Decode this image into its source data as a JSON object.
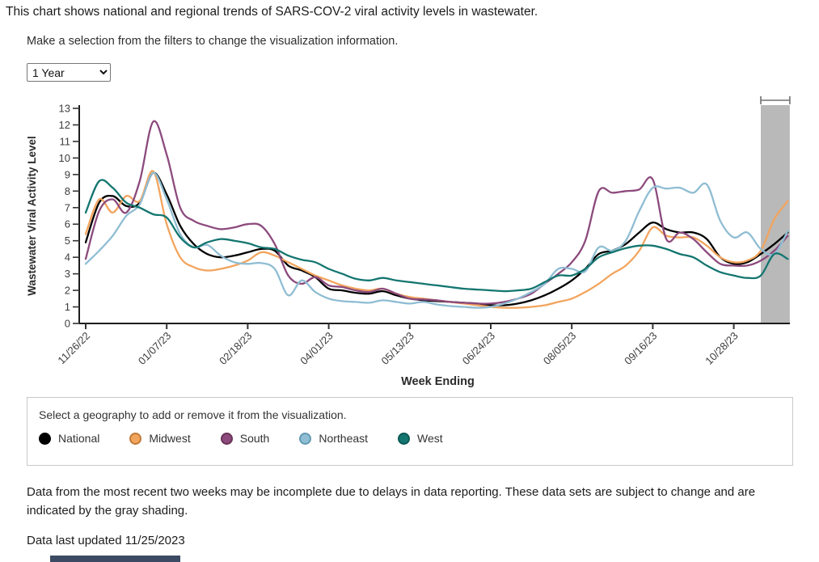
{
  "page": {
    "title": "This chart shows national and regional trends of SARS-COV-2 viral activity levels in wastewater.",
    "subtitle": "Make a selection from the filters to change the visualization information.",
    "time_filter": {
      "selected": "1 Year"
    },
    "footnote": "Data from the most recent two weeks may be incomplete due to delays in data reporting. These data sets are subject to change and are indicated by the gray shading.",
    "last_updated": "Data last updated 11/25/2023"
  },
  "legend": {
    "prompt": "Select a geography to add or remove it from the visualization.",
    "items": [
      {
        "label": "National",
        "color": "#000000",
        "border": "#000000"
      },
      {
        "label": "Midwest",
        "color": "#F2A45E",
        "border": "#C17A36"
      },
      {
        "label": "South",
        "color": "#8C4A7D",
        "border": "#693358"
      },
      {
        "label": "Northeast",
        "color": "#8FBDD3",
        "border": "#639AB4"
      },
      {
        "label": "West",
        "color": "#147670",
        "border": "#0C5A54"
      }
    ]
  },
  "chart_data": {
    "type": "line",
    "title": "",
    "xlabel": "Week Ending",
    "ylabel": "Wastewater Viral Activity Level",
    "ylim": [
      0,
      13
    ],
    "y_ticks": [
      0,
      1,
      2,
      3,
      4,
      5,
      6,
      7,
      8,
      9,
      10,
      11,
      12,
      13
    ],
    "grid": false,
    "legend_position": "bottom",
    "x": [
      "11/26/22",
      "12/03/22",
      "12/10/22",
      "12/17/22",
      "12/24/22",
      "12/31/22",
      "01/07/23",
      "01/14/23",
      "01/21/23",
      "01/28/23",
      "02/04/23",
      "02/11/23",
      "02/18/23",
      "02/25/23",
      "03/04/23",
      "03/11/23",
      "03/18/23",
      "03/25/23",
      "04/01/23",
      "04/08/23",
      "04/15/23",
      "04/22/23",
      "04/29/23",
      "05/06/23",
      "05/13/23",
      "05/20/23",
      "05/27/23",
      "06/03/23",
      "06/10/23",
      "06/17/23",
      "06/24/23",
      "07/01/23",
      "07/08/23",
      "07/15/23",
      "07/22/23",
      "07/29/23",
      "08/05/23",
      "08/12/23",
      "08/19/23",
      "08/26/23",
      "09/02/23",
      "09/09/23",
      "09/16/23",
      "09/23/23",
      "09/30/23",
      "10/07/23",
      "10/14/23",
      "10/21/23",
      "10/28/23",
      "11/04/23",
      "11/11/23",
      "11/18/23",
      "11/25/23"
    ],
    "x_tick_indices": [
      0,
      6,
      12,
      18,
      24,
      30,
      36,
      42,
      48
    ],
    "x_tick_labels": [
      "11/26/22",
      "01/07/23",
      "02/18/23",
      "04/01/23",
      "05/13/23",
      "06/24/23",
      "08/05/23",
      "09/16/23",
      "10/28/23"
    ],
    "series": [
      {
        "name": "National",
        "color": "#000000",
        "values": [
          4.9,
          7.3,
          7.7,
          7.1,
          7.3,
          9.1,
          7.8,
          5.9,
          4.8,
          4.2,
          4.0,
          4.1,
          4.3,
          4.5,
          4.4,
          3.5,
          3.2,
          2.8,
          2.1,
          2.0,
          1.85,
          1.8,
          1.95,
          1.7,
          1.5,
          1.4,
          1.35,
          1.3,
          1.25,
          1.2,
          1.1,
          1.1,
          1.2,
          1.4,
          1.7,
          2.1,
          2.6,
          3.3,
          4.2,
          4.4,
          4.8,
          5.5,
          6.1,
          5.7,
          5.5,
          5.5,
          5.1,
          4.0,
          3.6,
          3.7,
          4.2,
          4.8,
          5.5
        ]
      },
      {
        "name": "Midwest",
        "color": "#F2A45E",
        "values": [
          5.4,
          7.5,
          6.7,
          7.7,
          7.4,
          9.2,
          6.0,
          4.0,
          3.4,
          3.2,
          3.3,
          3.5,
          3.8,
          4.3,
          4.1,
          3.7,
          3.3,
          2.9,
          2.6,
          2.3,
          2.1,
          2.0,
          2.1,
          1.8,
          1.6,
          1.5,
          1.4,
          1.3,
          1.2,
          1.1,
          1.0,
          0.95,
          0.95,
          1.0,
          1.1,
          1.3,
          1.5,
          1.9,
          2.4,
          3.0,
          3.5,
          4.4,
          5.8,
          5.3,
          5.2,
          5.2,
          4.7,
          4.0,
          3.7,
          3.8,
          4.4,
          6.3,
          7.4
        ]
      },
      {
        "name": "South",
        "color": "#8C4A7D",
        "values": [
          3.9,
          6.8,
          7.5,
          6.7,
          8.6,
          12.2,
          10.2,
          7.0,
          6.2,
          5.9,
          5.7,
          5.8,
          6.0,
          5.9,
          4.8,
          2.9,
          2.4,
          2.8,
          2.3,
          2.2,
          2.0,
          1.9,
          2.1,
          1.8,
          1.5,
          1.45,
          1.4,
          1.3,
          1.25,
          1.2,
          1.2,
          1.3,
          1.5,
          1.8,
          2.4,
          3.0,
          3.7,
          5.0,
          8.0,
          7.9,
          8.0,
          8.1,
          8.7,
          5.1,
          5.5,
          5.1,
          4.3,
          3.6,
          3.5,
          3.5,
          3.8,
          4.4,
          5.3
        ]
      },
      {
        "name": "Northeast",
        "color": "#8FBDD3",
        "values": [
          3.6,
          4.4,
          5.3,
          6.5,
          7.2,
          9.1,
          7.5,
          5.4,
          4.6,
          4.75,
          4.1,
          3.7,
          3.6,
          3.65,
          3.3,
          1.7,
          2.6,
          1.9,
          1.5,
          1.35,
          1.3,
          1.25,
          1.4,
          1.3,
          1.2,
          1.3,
          1.15,
          1.05,
          1.0,
          0.95,
          1.0,
          1.2,
          1.5,
          1.9,
          2.4,
          3.3,
          3.3,
          3.15,
          4.6,
          4.4,
          5.0,
          6.8,
          8.2,
          8.15,
          8.2,
          7.9,
          8.4,
          6.2,
          5.2,
          5.5,
          4.5,
          4.2,
          5.6
        ]
      },
      {
        "name": "West",
        "color": "#147670",
        "values": [
          6.7,
          8.6,
          8.2,
          7.3,
          7.0,
          6.6,
          6.4,
          5.2,
          4.6,
          4.9,
          5.1,
          5.0,
          4.85,
          4.6,
          4.5,
          4.1,
          3.85,
          3.7,
          3.3,
          3.0,
          2.7,
          2.6,
          2.75,
          2.6,
          2.5,
          2.4,
          2.3,
          2.2,
          2.1,
          2.05,
          2.0,
          1.95,
          2.0,
          2.1,
          2.5,
          2.9,
          2.9,
          3.3,
          4.0,
          4.3,
          4.55,
          4.7,
          4.7,
          4.5,
          4.2,
          4.0,
          3.5,
          3.1,
          2.9,
          2.75,
          2.9,
          4.2,
          3.9
        ]
      }
    ],
    "incomplete_region": {
      "start_index": 50,
      "end_index": 52,
      "color": "#b9b9b9",
      "bracket_color": "#707070",
      "note": "gray shading = most recent two weeks, data may be incomplete"
    }
  }
}
